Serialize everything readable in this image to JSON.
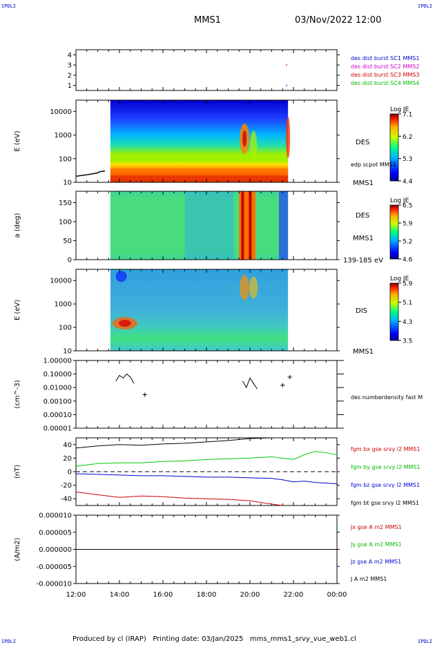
{
  "corner_label": "IPDLI",
  "header": {
    "spacecraft": "MMS1",
    "datetime": "03/Nov/2022 12:00"
  },
  "footer": "Produced by cl (IRAP)   Printing date: 03/Jan/2025   mms_mms1_srvy_vue_web1.cl",
  "time_axis": {
    "ticks": [
      "12:00",
      "14:00",
      "16:00",
      "18:00",
      "20:00",
      "22:00",
      "00:00"
    ]
  },
  "panels": {
    "burst": {
      "yticks": [
        "4",
        "3",
        "2",
        "1"
      ],
      "legend": [
        {
          "text": "des dist burst SC1 MMS1",
          "color": "#0000cc"
        },
        {
          "text": "des dist burst SC2 MMS2",
          "color": "#cc00cc"
        },
        {
          "text": "des dist burst SC3 MMS3",
          "color": "#cc0000"
        },
        {
          "text": "des dist burst SC4 MMS4",
          "color": "#00bb00"
        }
      ]
    },
    "des_energy": {
      "ylabel": "E (eV)",
      "yticks": [
        "10000",
        "1000",
        "100",
        "10"
      ],
      "colorbar": {
        "title": "Log JE",
        "ticks": [
          "7.1",
          "6.2",
          "5.3",
          "4.4"
        ]
      },
      "label": "DES",
      "overlay_label": "edp scpot MMS1",
      "bottom_label": "MMS1"
    },
    "des_pitch": {
      "ylabel": "a (deg)",
      "yticks": [
        "150",
        "100",
        "50",
        "0"
      ],
      "colorbar": {
        "title": "Log JE",
        "ticks": [
          "6.5",
          "5.9",
          "5.2",
          "4.6"
        ]
      },
      "label": "DES",
      "sub_label": "MMS1",
      "bottom_label": "139-185 eV"
    },
    "dis_energy": {
      "ylabel": "E (eV)",
      "yticks": [
        "10000",
        "1000",
        "100",
        "10"
      ],
      "colorbar": {
        "title": "Log JE",
        "ticks": [
          "5.9",
          "5.1",
          "4.3",
          "3.5"
        ]
      },
      "label": "DIS",
      "bottom_label": "MMS1"
    },
    "density": {
      "ylabel": "(cm^-3)",
      "yticks": [
        "1.00000",
        "0.10000",
        "0.01000",
        "0.00100",
        "0.00010",
        "0.00001"
      ],
      "label": "des numberdensity fast M"
    },
    "bfield": {
      "ylabel": "(nT)",
      "yticks": [
        "40",
        "20",
        "0",
        "-20",
        "-40"
      ],
      "legend": [
        {
          "text": "fgm bx gse srvy l2 MMS1",
          "color": "#cc0000"
        },
        {
          "text": "fgm by gse srvy l2 MMS1",
          "color": "#00bb00"
        },
        {
          "text": "fgm bz gse srvy l2 MMS1",
          "color": "#0000cc"
        },
        {
          "text": "fgm bt gse srvy l2 MMS1",
          "color": "#000000"
        }
      ]
    },
    "current": {
      "ylabel": "(A/m2)",
      "yticks": [
        "0.000010",
        "0.000005",
        "0.000000",
        "-0.000005",
        "-0.000010"
      ],
      "legend": [
        {
          "text": "Jx gse A m2 MMS1",
          "color": "#cc0000"
        },
        {
          "text": "Jy gse A m2 MMS1",
          "color": "#00bb00"
        },
        {
          "text": "Jz gse A m2 MMS1",
          "color": "#0000cc"
        },
        {
          "text": "J A m2 MMS1",
          "color": "#000000"
        }
      ]
    }
  },
  "chart_data": [
    {
      "type": "scatter",
      "title": "des dist burst",
      "x_range": [
        "12:00",
        "00:00"
      ],
      "ylim": [
        0.5,
        4.5
      ],
      "series": [
        {
          "name": "des dist burst SC3 MMS3",
          "x": [
            "21:40"
          ],
          "y": [
            3
          ]
        },
        {
          "name": "des dist burst SC1 MMS1",
          "x": [
            "21:40"
          ],
          "y": [
            1
          ]
        }
      ]
    },
    {
      "type": "heatmap",
      "ylabel": "E (eV)",
      "yscale": "log",
      "ylim": [
        10,
        30000
      ],
      "z_label": "Log JE",
      "z_range": [
        4.4,
        7.1
      ],
      "data_start": "13:35",
      "data_end": "21:45",
      "series": [
        {
          "name": "edp scpot MMS1",
          "x": [
            "12:00",
            "12:40",
            "13:00",
            "13:05",
            "13:20"
          ],
          "y": [
            18,
            22,
            25,
            28,
            30
          ]
        }
      ]
    },
    {
      "type": "heatmap",
      "ylabel": "a (deg)",
      "ylim": [
        0,
        180
      ],
      "z_label": "Log JE",
      "z_range": [
        4.6,
        6.5
      ],
      "energy_band": "139-185 eV",
      "data_start": "13:35",
      "data_end": "21:45"
    },
    {
      "type": "heatmap",
      "ylabel": "E (eV)",
      "yscale": "log",
      "ylim": [
        10,
        30000
      ],
      "z_label": "Log JE",
      "z_range": [
        3.5,
        5.9
      ],
      "data_start": "13:35",
      "data_end": "21:45"
    },
    {
      "type": "line",
      "name": "des numberdensity fast",
      "ylabel": "(cm^-3)",
      "yscale": "log",
      "ylim": [
        1e-05,
        1
      ],
      "x": [
        "13:50",
        "14:00",
        "14:10",
        "14:20",
        "14:30",
        "14:40",
        "15:10",
        "19:40",
        "19:50",
        "20:00",
        "20:10",
        "20:20",
        "21:30",
        "21:50"
      ],
      "y": [
        0.03,
        0.08,
        0.05,
        0.1,
        0.06,
        0.02,
        0.003,
        0.03,
        0.01,
        0.05,
        0.02,
        0.008,
        0.015,
        0.06
      ]
    },
    {
      "type": "line",
      "ylabel": "(nT)",
      "ylim": [
        -50,
        50
      ],
      "x": [
        "12:00",
        "13:00",
        "14:00",
        "15:00",
        "16:00",
        "17:00",
        "18:00",
        "19:00",
        "20:00",
        "21:00",
        "21:30",
        "22:00",
        "22:30",
        "23:00",
        "23:30",
        "00:00"
      ],
      "series": [
        {
          "name": "fgm bt gse srvy l2 MMS1",
          "y": [
            35,
            38,
            40,
            39,
            41,
            42,
            44,
            46,
            49,
            50,
            null,
            null,
            null,
            null,
            null,
            null
          ]
        },
        {
          "name": "fgm bx gse srvy l2 MMS1",
          "y": [
            -30,
            -34,
            -38,
            -36,
            -37,
            -39,
            -40,
            -41,
            -43,
            -48,
            -50,
            null,
            null,
            null,
            null,
            null
          ]
        },
        {
          "name": "fgm by gse srvy l2 MMS1",
          "y": [
            8,
            12,
            13,
            13,
            15,
            16,
            18,
            19,
            20,
            22,
            20,
            18,
            25,
            30,
            28,
            25
          ]
        },
        {
          "name": "fgm bz gse srvy l2 MMS1",
          "y": [
            -3,
            -4,
            -5,
            -6,
            -6,
            -7,
            -8,
            -8,
            -9,
            -10,
            -12,
            -15,
            -14,
            -16,
            -17,
            -18
          ]
        }
      ]
    },
    {
      "type": "line",
      "ylabel": "(A/m2)",
      "ylim": [
        -1e-05,
        1e-05
      ],
      "x": [
        "12:00",
        "00:00"
      ],
      "series": [
        {
          "name": "J A m2 MMS1",
          "y": [
            0,
            0
          ]
        }
      ]
    }
  ]
}
